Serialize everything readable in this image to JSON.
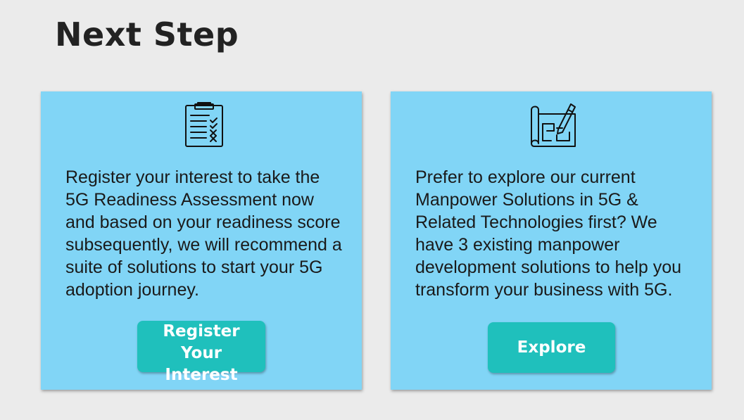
{
  "page": {
    "title": "Next Step"
  },
  "cards": [
    {
      "icon": "clipboard-checklist-icon",
      "text": "Register your interest to take the 5G Readiness Assessment now and based on your readiness score subsequently, we will recommend a suite of solutions to start your 5G adoption journey.",
      "button_label": "Register Your Interest"
    },
    {
      "icon": "blueprint-pencil-icon",
      "text": "Prefer to explore our current Manpower Solutions in 5G & Related Technologies first? We have 3 existing manpower development solutions to help you transform your business with 5G.",
      "button_label": "Explore"
    }
  ],
  "colors": {
    "background": "#ebebeb",
    "card": "#81d5f6",
    "button": "#1fc0bc",
    "title": "#222222"
  }
}
